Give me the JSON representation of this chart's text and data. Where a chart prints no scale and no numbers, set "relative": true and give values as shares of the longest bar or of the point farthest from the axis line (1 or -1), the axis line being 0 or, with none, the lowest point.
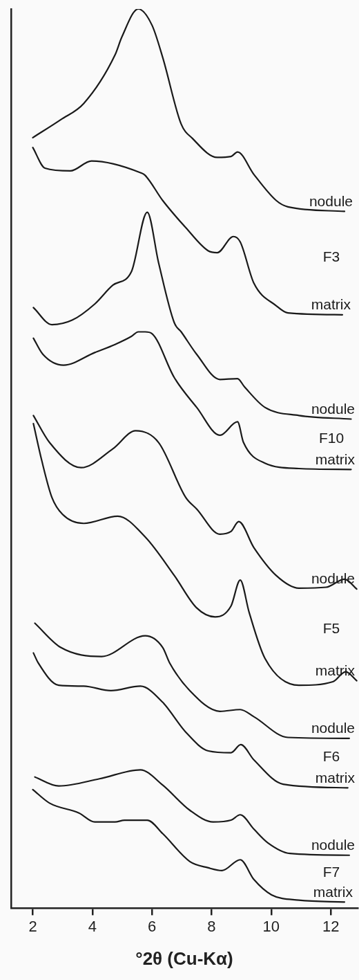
{
  "chart_data": {
    "type": "line",
    "xlabel": "°2θ (Cu-Kα)",
    "xlim": [
      1.27,
      12.9
    ],
    "xticks": [
      2,
      4,
      6,
      8,
      10,
      12
    ],
    "relative": true,
    "marker": "none",
    "line_style": "solid",
    "series": [
      {
        "name": "nodule",
        "color": "#1a1a1a",
        "x": [
          2.0,
          2.94,
          3.71,
          4.76,
          4.99,
          5.54,
          6.0,
          6.36,
          6.98,
          7.36,
          8.19,
          8.65,
          8.87,
          9.42,
          10.17,
          10.56,
          12.46
        ],
        "values": [
          0.857,
          0.877,
          0.895,
          0.949,
          0.969,
          1.0,
          0.982,
          0.946,
          0.872,
          0.856,
          0.835,
          0.836,
          0.841,
          0.816,
          0.787,
          0.78,
          0.775
        ]
      },
      {
        "name": "matrix",
        "color": "#1a1a1a",
        "x": [
          2.0,
          2.41,
          3.26,
          3.97,
          5.61,
          5.77,
          6.36,
          7.13,
          7.89,
          8.19,
          8.73,
          8.96,
          9.42,
          10.17,
          10.56,
          12.39
        ],
        "values": [
          0.846,
          0.823,
          0.82,
          0.831,
          0.818,
          0.815,
          0.787,
          0.757,
          0.731,
          0.729,
          0.747,
          0.741,
          0.695,
          0.67,
          0.662,
          0.66
        ]
      },
      {
        "name": "nodule",
        "color": "#1a1a1a",
        "x": [
          2.02,
          2.64,
          3.32,
          4.08,
          4.69,
          5.31,
          5.84,
          6.22,
          6.75,
          6.98,
          7.5,
          8.28,
          8.87,
          9.1,
          9.79,
          10.93,
          12.68
        ],
        "values": [
          0.668,
          0.649,
          0.654,
          0.672,
          0.693,
          0.708,
          0.774,
          0.718,
          0.651,
          0.641,
          0.616,
          0.588,
          0.589,
          0.58,
          0.557,
          0.548,
          0.544
        ]
      },
      {
        "name": "matrix",
        "color": "#1a1a1a",
        "x": [
          2.02,
          2.34,
          3.03,
          4.08,
          4.76,
          5.31,
          5.54,
          5.77,
          6.0,
          6.75,
          7.5,
          8.28,
          8.87,
          9.07,
          9.79,
          10.93,
          12.68
        ],
        "values": [
          0.634,
          0.616,
          0.604,
          0.618,
          0.627,
          0.636,
          0.641,
          0.641,
          0.639,
          0.59,
          0.557,
          0.526,
          0.541,
          0.518,
          0.495,
          0.489,
          0.488
        ]
      },
      {
        "name": "nodule",
        "color": "#1a1a1a",
        "x": [
          2.02,
          2.56,
          3.62,
          4.69,
          5.45,
          6.22,
          7.13,
          7.5,
          8.28,
          8.65,
          8.91,
          9.42,
          10.17,
          10.93,
          11.84,
          12.46,
          12.87
        ],
        "values": [
          0.548,
          0.518,
          0.49,
          0.511,
          0.531,
          0.518,
          0.457,
          0.444,
          0.416,
          0.419,
          0.43,
          0.401,
          0.37,
          0.356,
          0.357,
          0.366,
          0.355
        ]
      },
      {
        "name": "matrix",
        "color": "#1a1a1a",
        "x": [
          2.02,
          2.3,
          2.64,
          3.0,
          3.71,
          4.85,
          5.77,
          6.75,
          7.5,
          8.12,
          8.65,
          8.96,
          9.26,
          9.79,
          10.93,
          12.07,
          12.5,
          12.87
        ],
        "values": [
          0.539,
          0.498,
          0.457,
          0.438,
          0.428,
          0.436,
          0.413,
          0.37,
          0.334,
          0.324,
          0.336,
          0.365,
          0.329,
          0.278,
          0.248,
          0.252,
          0.263,
          0.253
        ]
      },
      {
        "name": "nodule",
        "color": "#1a1a1a",
        "x": [
          2.07,
          2.94,
          4.31,
          5.77,
          6.36,
          6.59,
          7.27,
          8.28,
          8.96,
          9.42,
          10.56,
          12.62
        ],
        "values": [
          0.317,
          0.29,
          0.28,
          0.303,
          0.29,
          0.273,
          0.242,
          0.219,
          0.221,
          0.213,
          0.19,
          0.189
        ]
      },
      {
        "name": "matrix",
        "color": "#1a1a1a",
        "x": [
          2.02,
          2.18,
          2.87,
          3.71,
          4.62,
          5.61,
          6.36,
          7.13,
          7.89,
          8.65,
          8.98,
          9.42,
          10.4,
          12.57
        ],
        "values": [
          0.284,
          0.273,
          0.248,
          0.247,
          0.242,
          0.247,
          0.229,
          0.196,
          0.175,
          0.173,
          0.182,
          0.165,
          0.138,
          0.134
        ]
      },
      {
        "name": "nodule",
        "color": "#1a1a1a",
        "x": [
          2.07,
          2.87,
          4.24,
          5.61,
          6.36,
          7.27,
          8.05,
          8.65,
          8.96,
          9.42,
          9.88,
          10.63,
          12.62
        ],
        "values": [
          0.146,
          0.136,
          0.144,
          0.154,
          0.137,
          0.109,
          0.096,
          0.098,
          0.104,
          0.088,
          0.073,
          0.061,
          0.059
        ]
      },
      {
        "name": "matrix",
        "color": "#1a1a1a",
        "x": [
          2.0,
          2.56,
          3.55,
          4.08,
          4.76,
          5.08,
          5.84,
          6.36,
          7.27,
          7.89,
          8.35,
          8.96,
          9.42,
          10.01,
          10.93,
          12.46
        ],
        "values": [
          0.132,
          0.117,
          0.106,
          0.096,
          0.096,
          0.098,
          0.098,
          0.083,
          0.052,
          0.045,
          0.042,
          0.054,
          0.032,
          0.015,
          0.009,
          0.007
        ]
      }
    ],
    "annotations": [
      "F3",
      "F10",
      "F5",
      "F6",
      "F7"
    ]
  }
}
